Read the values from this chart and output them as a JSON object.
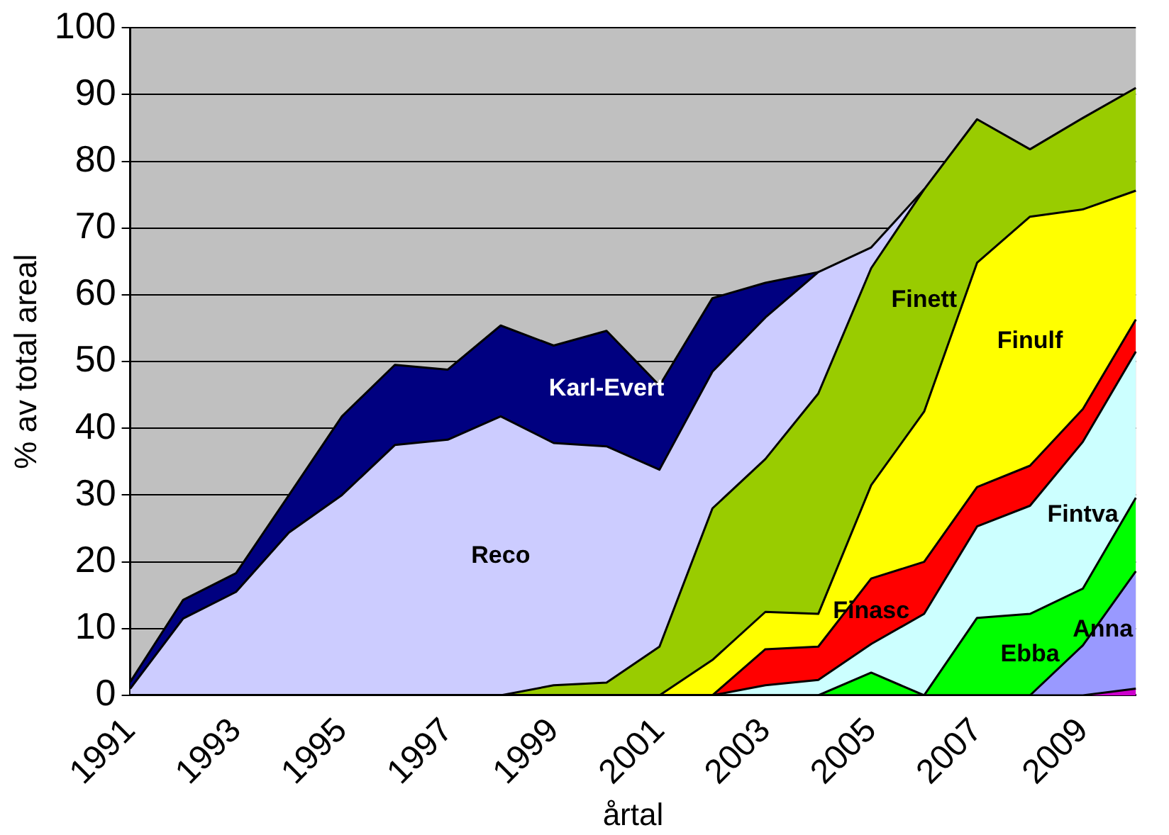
{
  "chart_data": {
    "type": "area",
    "stacked": true,
    "xlabel": "årtal",
    "ylabel": "% av total areal",
    "categories": [
      "1991",
      null,
      "1993",
      null,
      "1995",
      null,
      "1997",
      null,
      "1999",
      null,
      "2001",
      null,
      "2003",
      null,
      "2005",
      null,
      "2007",
      null,
      "2009",
      null
    ],
    "ylim": [
      0,
      100
    ],
    "yticks": [
      0,
      10,
      20,
      30,
      40,
      50,
      60,
      70,
      80,
      90,
      100
    ],
    "grid": "y",
    "legend": false,
    "marker": "none",
    "series": [
      {
        "color": "#cc00cc",
        "values": [
          0,
          0,
          0,
          0,
          0,
          0,
          0,
          0,
          0,
          0,
          0,
          0,
          0,
          0,
          0,
          0,
          0,
          0,
          0,
          1
        ]
      },
      {
        "name": "Anna",
        "color": "#9999ff",
        "values": [
          0,
          0,
          0,
          0,
          0,
          0,
          0,
          0,
          0,
          0,
          0,
          0,
          0,
          0,
          0,
          0,
          0,
          0,
          7.5,
          17.6
        ]
      },
      {
        "name": "Ebba",
        "color": "#00ff00",
        "values": [
          0,
          0,
          0,
          0,
          0,
          0,
          0,
          0,
          0,
          0,
          0,
          0,
          0,
          0,
          3.4,
          0,
          11.6,
          12.2,
          8.5,
          11
        ]
      },
      {
        "name": "Fintva",
        "color": "#ccffff",
        "values": [
          0,
          0,
          0,
          0,
          0,
          0,
          0,
          0,
          0,
          0,
          0,
          0,
          1.5,
          2.3,
          4.3,
          12.2,
          13.7,
          16.2,
          22,
          21.9
        ]
      },
      {
        "name": "Finasc",
        "color": "#ff0000",
        "values": [
          0,
          0,
          0,
          0,
          0,
          0,
          0,
          0,
          0,
          0,
          0,
          0,
          5.4,
          5,
          9.8,
          7.8,
          5.9,
          6,
          4.9,
          4.8
        ]
      },
      {
        "name": "Finulf",
        "color": "#ffff00",
        "values": [
          0,
          0,
          0,
          0,
          0,
          0,
          0,
          0,
          0,
          0,
          0,
          5.3,
          5.6,
          4.9,
          14,
          22.5,
          33.6,
          37.3,
          29.9,
          19.3
        ]
      },
      {
        "name": "Finett",
        "color": "#99cc00",
        "values": [
          0,
          0,
          0,
          0,
          0,
          0,
          0,
          0,
          1.5,
          1.9,
          7.3,
          22.7,
          22.9,
          33,
          32.5,
          33.3,
          21.5,
          10.1,
          13.7,
          15.4
        ]
      },
      {
        "name": "Reco",
        "color": "#ccccff",
        "values": [
          1,
          11.5,
          15.5,
          24.4,
          30,
          37.5,
          38.3,
          41.8,
          36.3,
          35.4,
          26.5,
          20.5,
          21.2,
          18.2,
          3.1,
          0,
          null,
          null,
          null,
          null
        ]
      },
      {
        "name": "Karl-Evert",
        "color": "#000080",
        "values": [
          1,
          2.8,
          2.8,
          5.6,
          11.8,
          12,
          10.5,
          13.6,
          14.6,
          17.3,
          12.6,
          11,
          5.2,
          0,
          null,
          null,
          null,
          null,
          null,
          null
        ]
      }
    ]
  }
}
